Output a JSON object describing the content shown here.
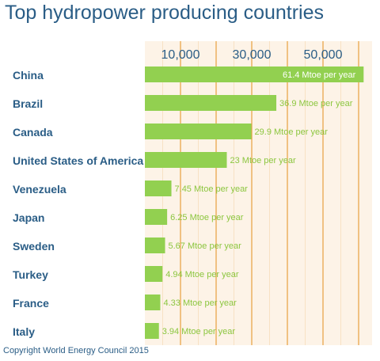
{
  "title": "Top hydropower producing countries",
  "footer": "Copyright World Energy Council 2015",
  "chart_data": {
    "type": "bar",
    "orientation": "horizontal",
    "title": "Top hydropower producing countries",
    "categories": [
      "China",
      "Brazil",
      "Canada",
      "United States of America",
      "Venezuela",
      "Japan",
      "Sweden",
      "Turkey",
      "France",
      "Italy"
    ],
    "values": [
      61.4,
      36.9,
      29.9,
      23,
      7.45,
      6.25,
      5.67,
      4.94,
      4.33,
      3.94
    ],
    "value_labels": [
      "61.4 Mtoe per year",
      "36.9 Mtoe per year",
      "29.9 Mtoe per year",
      "23 Mtoe per year",
      "7.45 Mtoe per year",
      "6.25 Mtoe per year",
      "5.67 Mtoe per year",
      "4.94 Mtoe per year",
      "4.33 Mtoe per year",
      "3.94 Mtoe per year"
    ],
    "x_ticks": [
      "10,000",
      "30,000",
      "50,000"
    ],
    "tick_values": [
      10,
      30,
      50
    ],
    "xlim": [
      0,
      62
    ],
    "xlabel": "",
    "ylabel": "",
    "grid": "vertical",
    "legend": "none",
    "colors": {
      "bar": "#92d050",
      "label_inside": "#ffffff",
      "label_outside": "#8cc63f",
      "gridline": "#e8a040",
      "plot_bg": "#fdf3e7",
      "text": "#2a5d86"
    }
  }
}
